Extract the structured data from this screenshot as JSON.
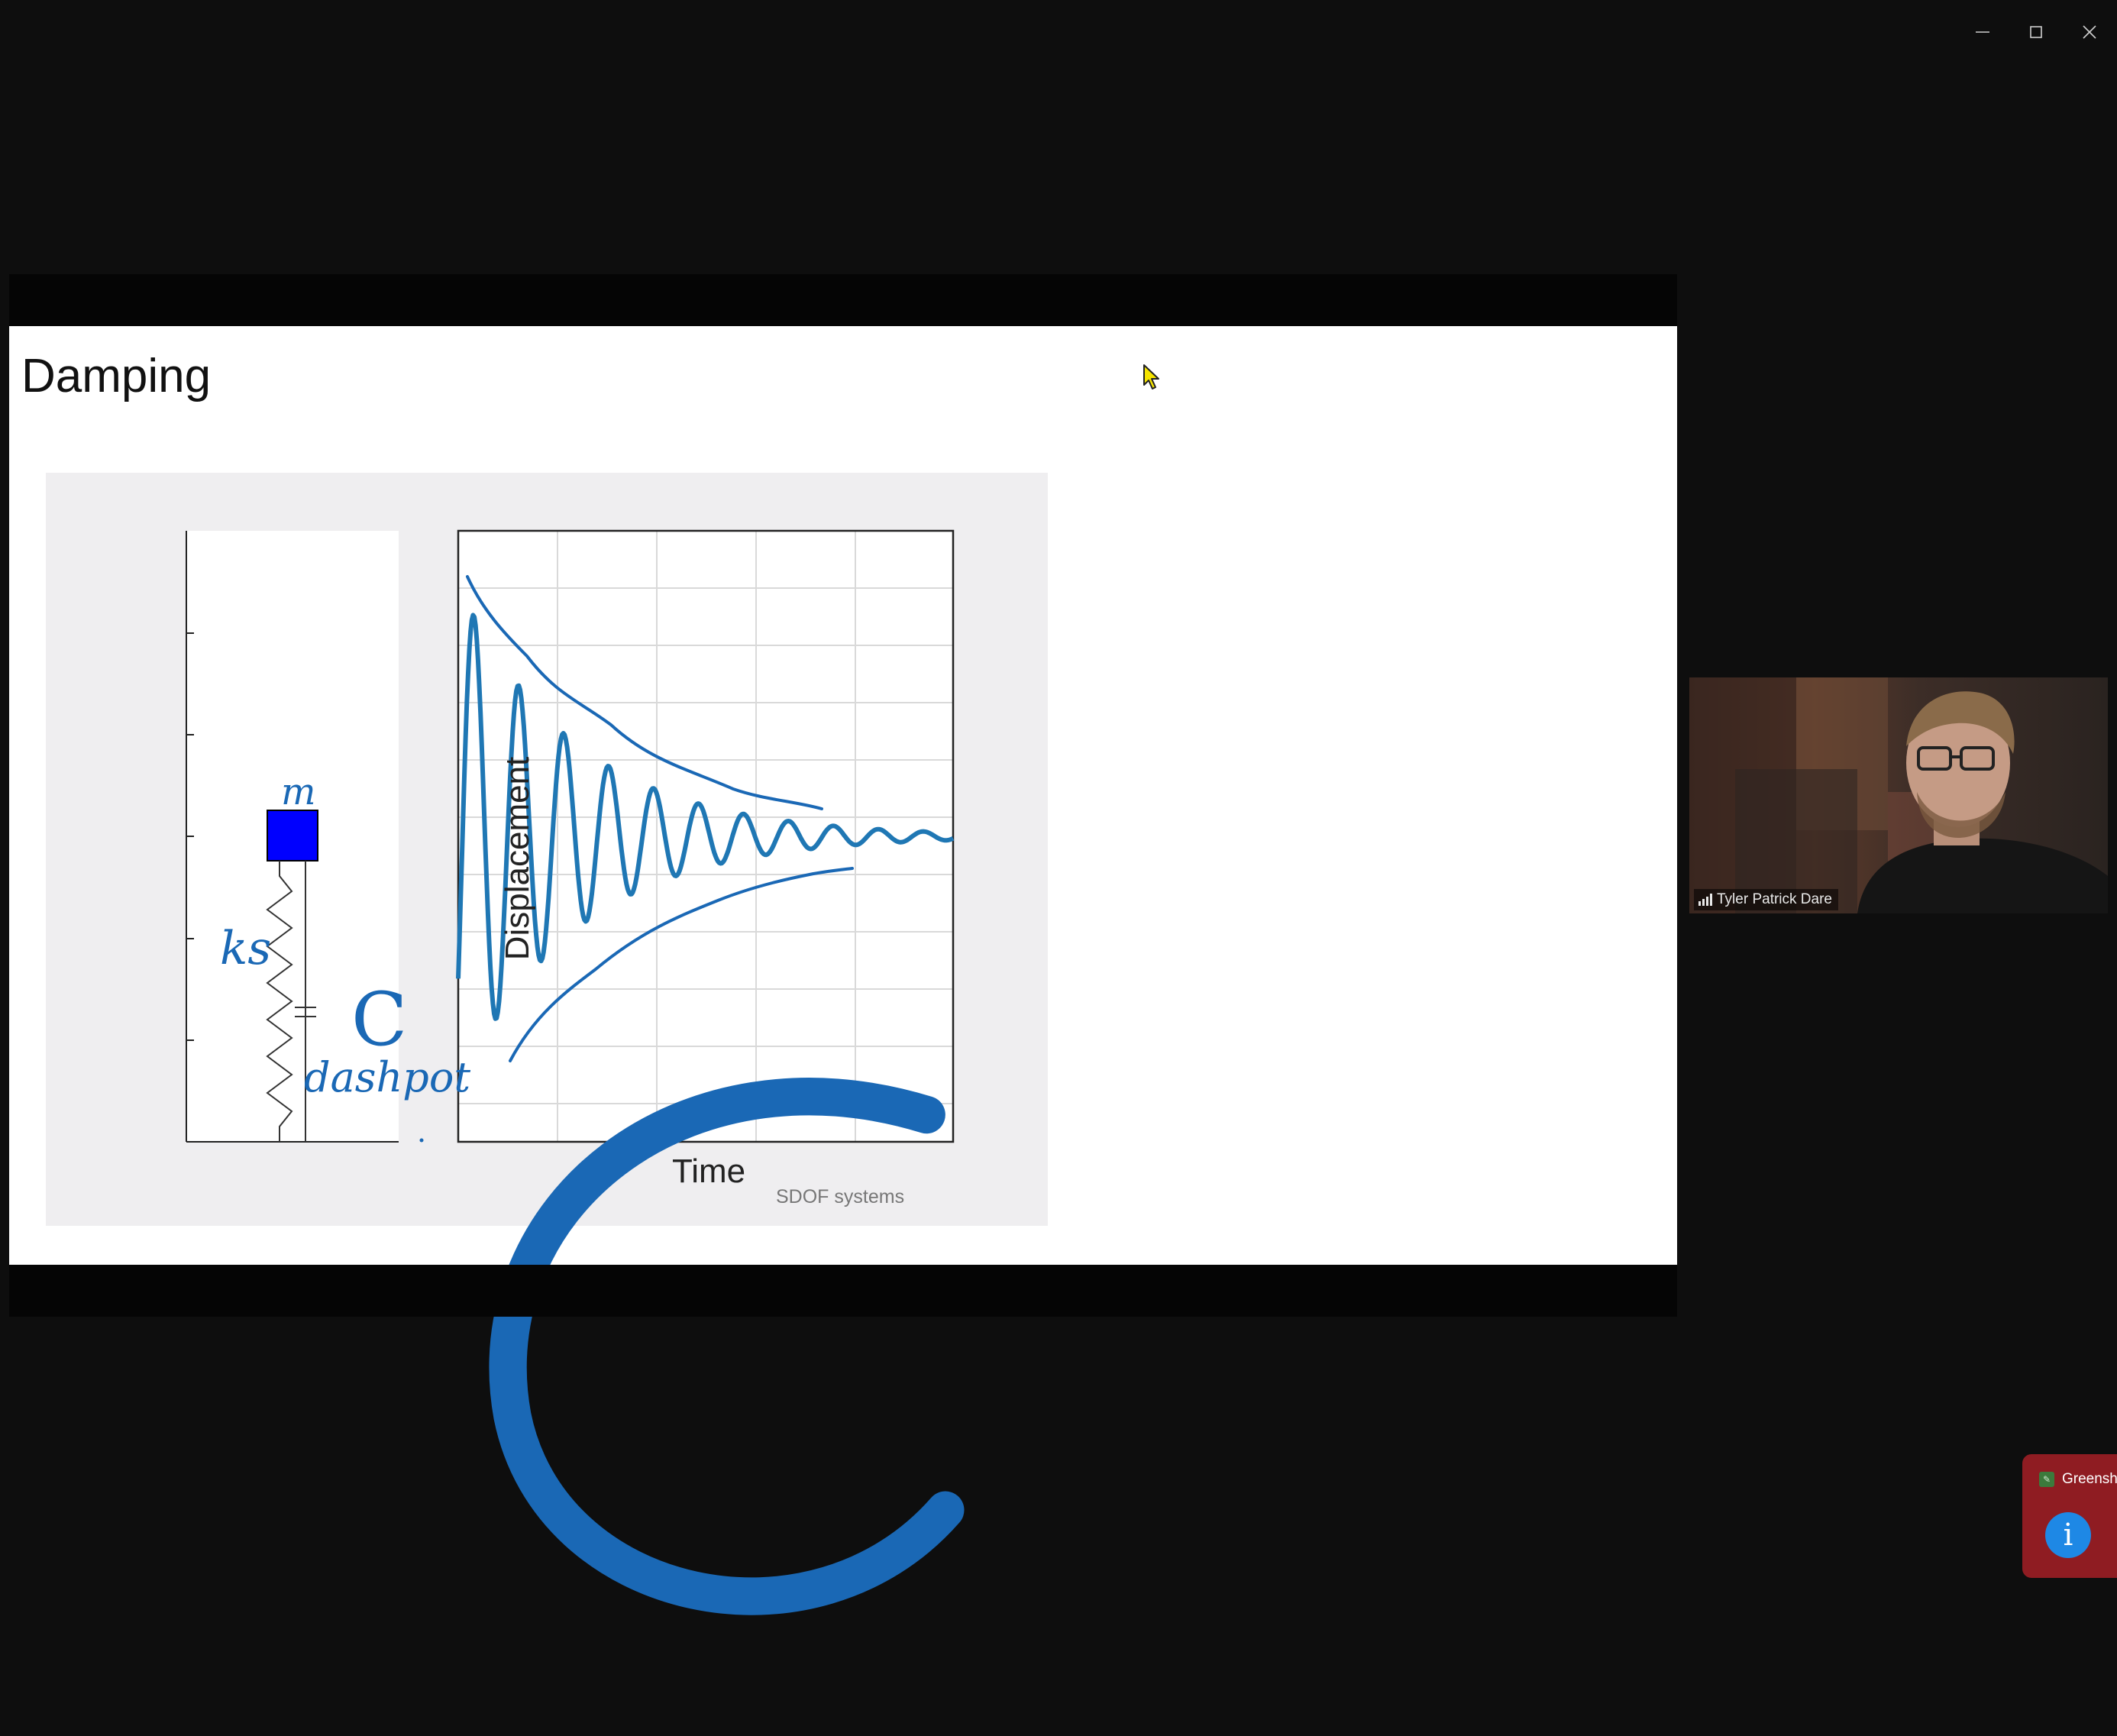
{
  "window": {
    "controls": {
      "minimize_icon": "minimize-icon",
      "maximize_icon": "maximize-icon",
      "close_icon": "close-icon"
    }
  },
  "slide": {
    "title": "Damping",
    "figure": {
      "ylabel": "Displacement",
      "xlabel": "Time",
      "caption": "SDOF systems"
    },
    "annotations": {
      "mass": "m",
      "spring": "ks",
      "damper": "C",
      "damper_note": "dashpot"
    },
    "colors": {
      "mass_block": "#0000ff",
      "ink": "#1a68b5",
      "response": "#1f77b4"
    }
  },
  "participant": {
    "name": "Tyler Patrick Dare",
    "signal_icon": "signal-bars-icon"
  },
  "toast": {
    "app": "Greensh",
    "icon": "info-icon",
    "accent": "#8f1c22"
  }
}
